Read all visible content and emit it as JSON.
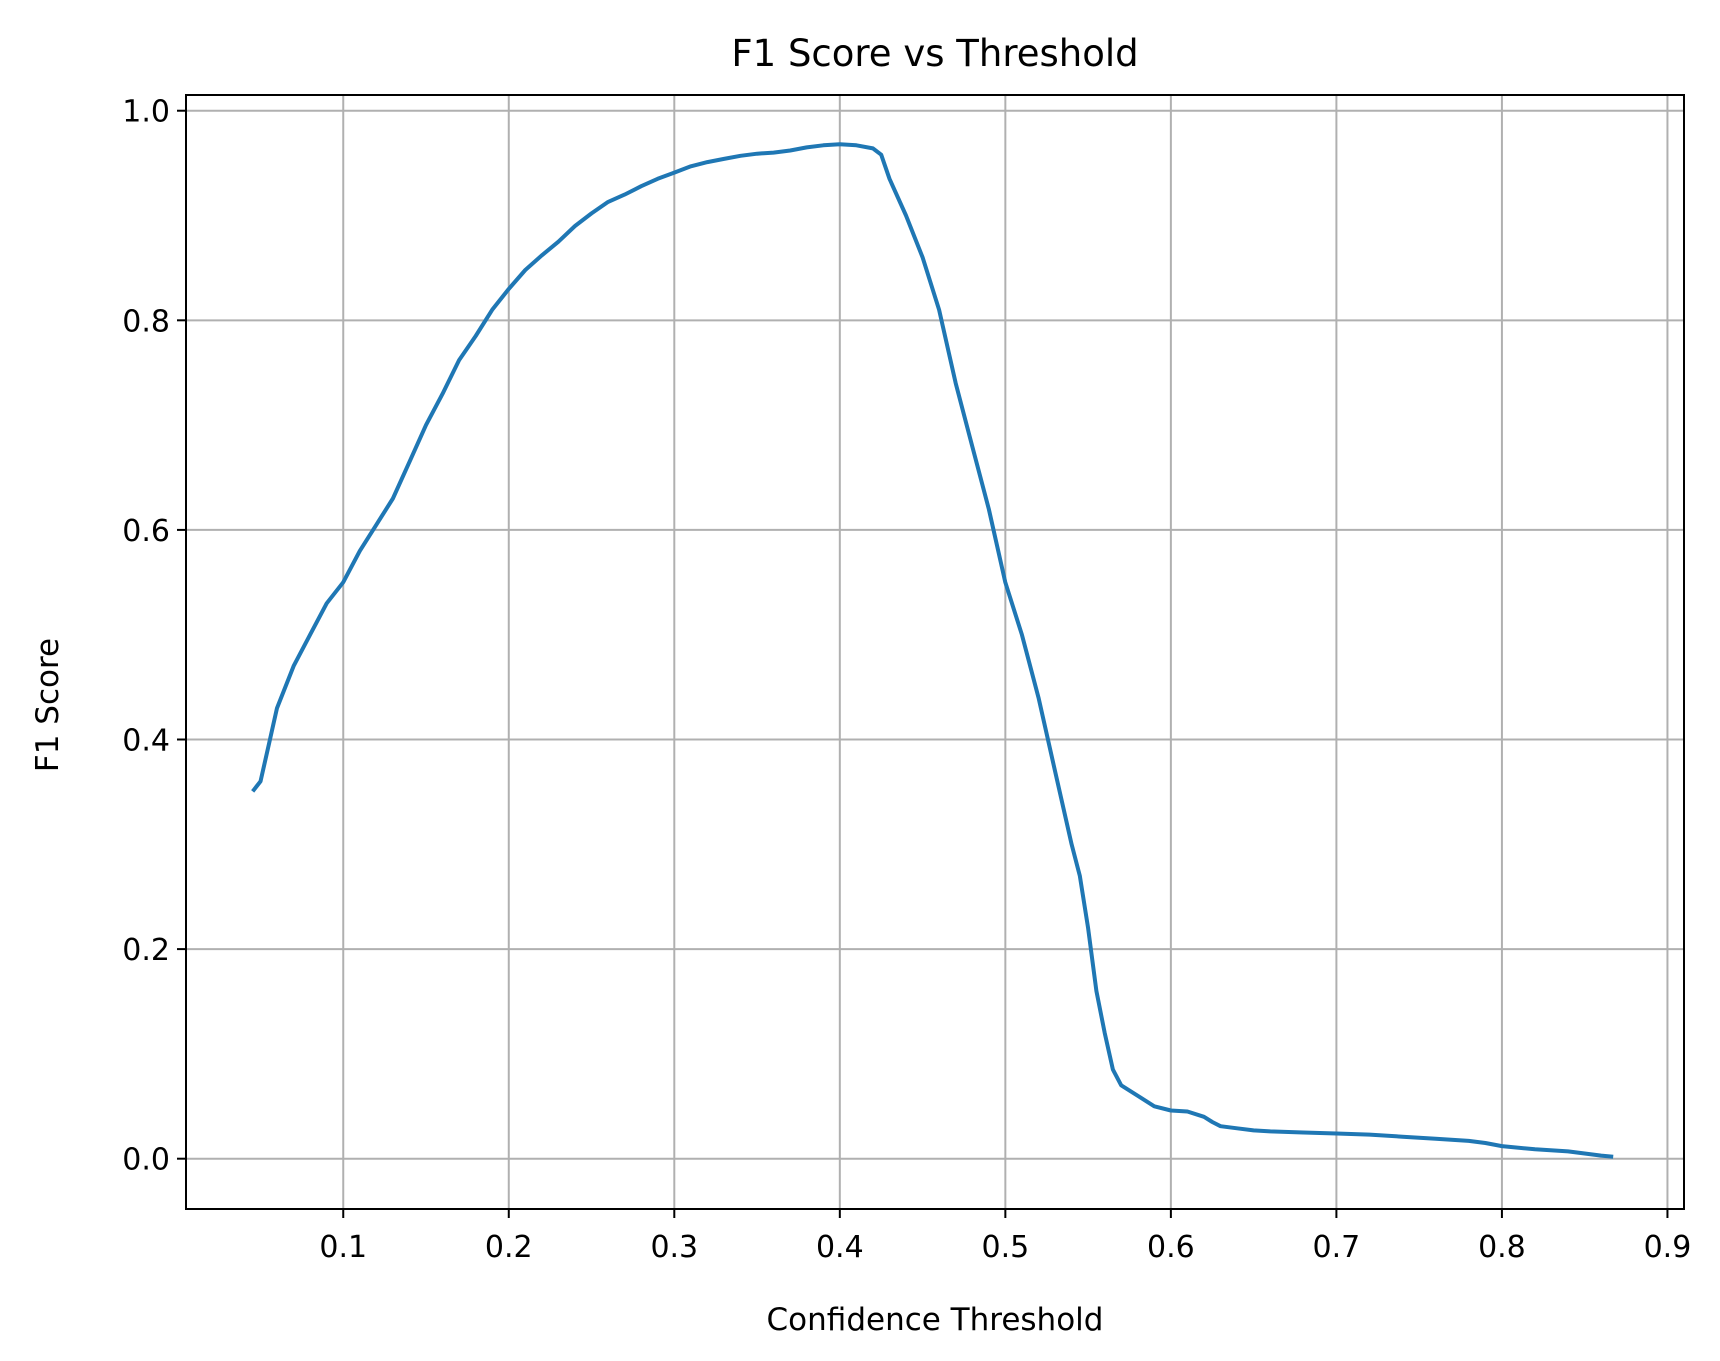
{
  "chart_data": {
    "type": "line",
    "title": "F1 Score vs Threshold",
    "xlabel": "Confidence Threshold",
    "ylabel": "F1 Score",
    "xlim": [
      0.005,
      0.91
    ],
    "ylim": [
      -0.048,
      1.015
    ],
    "x_ticks": [
      0.1,
      0.2,
      0.3,
      0.4,
      0.5,
      0.6,
      0.7,
      0.8,
      0.9
    ],
    "x_tick_labels": [
      "0.1",
      "0.2",
      "0.3",
      "0.4",
      "0.5",
      "0.6",
      "0.7",
      "0.8",
      "0.9"
    ],
    "y_ticks": [
      0.0,
      0.2,
      0.4,
      0.6,
      0.8,
      1.0
    ],
    "y_tick_labels": [
      "0.0",
      "0.2",
      "0.4",
      "0.6",
      "0.8",
      "1.0"
    ],
    "grid": true,
    "line_color": "#1f77b4",
    "series": [
      {
        "x": [
          0.046,
          0.05,
          0.055,
          0.06,
          0.07,
          0.08,
          0.09,
          0.1,
          0.11,
          0.12,
          0.13,
          0.14,
          0.15,
          0.16,
          0.17,
          0.18,
          0.19,
          0.2,
          0.21,
          0.22,
          0.23,
          0.24,
          0.25,
          0.26,
          0.27,
          0.28,
          0.29,
          0.3,
          0.31,
          0.32,
          0.33,
          0.34,
          0.35,
          0.36,
          0.37,
          0.38,
          0.39,
          0.4,
          0.41,
          0.42,
          0.425,
          0.43,
          0.44,
          0.45,
          0.46,
          0.47,
          0.48,
          0.49,
          0.5,
          0.51,
          0.52,
          0.53,
          0.54,
          0.545,
          0.55,
          0.555,
          0.56,
          0.565,
          0.57,
          0.575,
          0.58,
          0.59,
          0.6,
          0.61,
          0.62,
          0.625,
          0.63,
          0.64,
          0.65,
          0.66,
          0.68,
          0.7,
          0.72,
          0.74,
          0.76,
          0.78,
          0.79,
          0.8,
          0.82,
          0.84,
          0.85,
          0.86,
          0.866
        ],
        "values": [
          0.352,
          0.36,
          0.395,
          0.43,
          0.47,
          0.5,
          0.53,
          0.55,
          0.58,
          0.605,
          0.63,
          0.665,
          0.7,
          0.73,
          0.762,
          0.785,
          0.81,
          0.83,
          0.848,
          0.862,
          0.875,
          0.89,
          0.902,
          0.913,
          0.92,
          0.928,
          0.935,
          0.941,
          0.947,
          0.951,
          0.954,
          0.957,
          0.959,
          0.96,
          0.962,
          0.965,
          0.967,
          0.968,
          0.967,
          0.964,
          0.958,
          0.935,
          0.9,
          0.86,
          0.81,
          0.74,
          0.68,
          0.62,
          0.55,
          0.5,
          0.44,
          0.37,
          0.3,
          0.27,
          0.22,
          0.16,
          0.12,
          0.085,
          0.07,
          0.065,
          0.06,
          0.05,
          0.046,
          0.045,
          0.04,
          0.035,
          0.031,
          0.029,
          0.027,
          0.026,
          0.025,
          0.024,
          0.023,
          0.021,
          0.019,
          0.017,
          0.015,
          0.012,
          0.009,
          0.007,
          0.005,
          0.003,
          0.002
        ]
      }
    ]
  }
}
